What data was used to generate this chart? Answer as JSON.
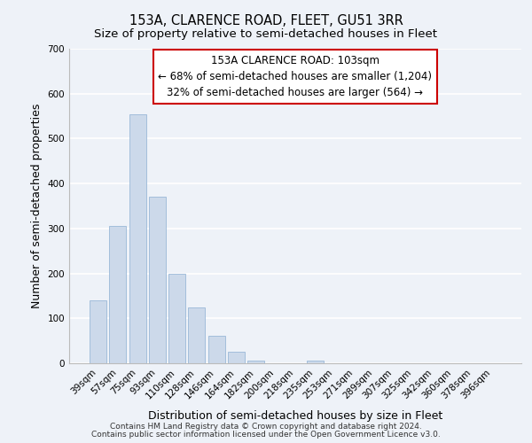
{
  "title": "153A, CLARENCE ROAD, FLEET, GU51 3RR",
  "subtitle": "Size of property relative to semi-detached houses in Fleet",
  "xlabel": "Distribution of semi-detached houses by size in Fleet",
  "ylabel": "Number of semi-detached properties",
  "bar_labels": [
    "39sqm",
    "57sqm",
    "75sqm",
    "93sqm",
    "110sqm",
    "128sqm",
    "146sqm",
    "164sqm",
    "182sqm",
    "200sqm",
    "218sqm",
    "235sqm",
    "253sqm",
    "271sqm",
    "289sqm",
    "307sqm",
    "325sqm",
    "342sqm",
    "360sqm",
    "378sqm",
    "396sqm"
  ],
  "bar_values": [
    140,
    305,
    555,
    370,
    200,
    125,
    62,
    25,
    6,
    0,
    0,
    5,
    0,
    0,
    0,
    0,
    0,
    0,
    0,
    0,
    0
  ],
  "bar_color": "#ccd9ea",
  "bar_edge_color": "#9ab8d8",
  "annotation_text": "153A CLARENCE ROAD: 103sqm\n← 68% of semi-detached houses are smaller (1,204)\n32% of semi-detached houses are larger (564) →",
  "annotation_box_color": "#ffffff",
  "annotation_box_edge": "#cc0000",
  "ylim": [
    0,
    700
  ],
  "yticks": [
    0,
    100,
    200,
    300,
    400,
    500,
    600,
    700
  ],
  "footer_line1": "Contains HM Land Registry data © Crown copyright and database right 2024.",
  "footer_line2": "Contains public sector information licensed under the Open Government Licence v3.0.",
  "background_color": "#eef2f8",
  "plot_bg_color": "#eef2f8",
  "grid_color": "#ffffff",
  "title_fontsize": 10.5,
  "subtitle_fontsize": 9.5,
  "axis_label_fontsize": 9,
  "tick_fontsize": 7.5,
  "annotation_fontsize": 8.5,
  "footer_fontsize": 6.5
}
